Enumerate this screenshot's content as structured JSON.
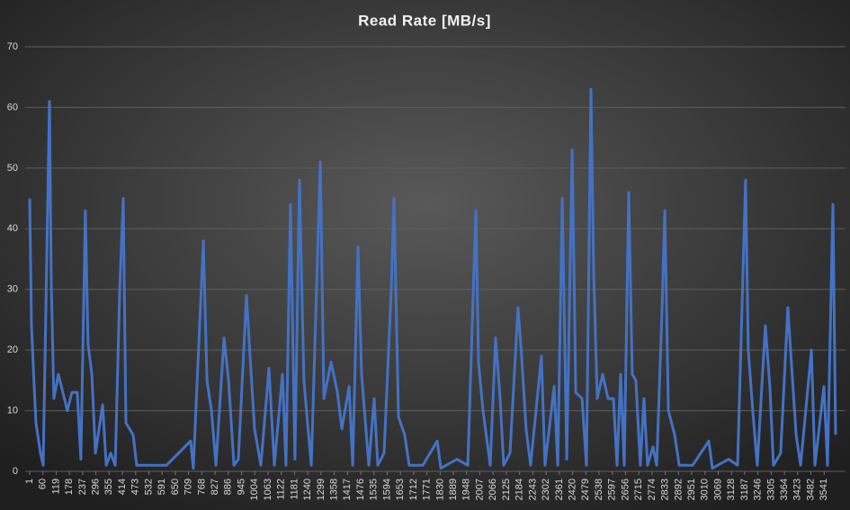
{
  "chart_data": {
    "type": "line",
    "title": "Read Rate [MB/s]",
    "color": "#4472c4",
    "grid": true,
    "x": [
      1,
      9,
      21,
      29,
      49,
      61,
      89,
      97,
      109,
      129,
      149,
      169,
      189,
      213,
      229,
      249,
      261,
      278,
      294,
      326,
      342,
      362,
      382,
      402,
      418,
      430,
      462,
      478,
      510,
      610,
      718,
      730,
      775,
      791,
      811,
      831,
      867,
      887,
      911,
      931,
      967,
      983,
      1003,
      1031,
      1067,
      1091,
      1127,
      1143,
      1163,
      1183,
      1203,
      1223,
      1239,
      1256,
      1296,
      1312,
      1344,
      1372,
      1392,
      1424,
      1440,
      1464,
      1480,
      1512,
      1536,
      1552,
      1580,
      1612,
      1624,
      1644,
      1672,
      1692,
      1753,
      1817,
      1833,
      1905,
      1953,
      1989,
      2001,
      2021,
      2053,
      2077,
      2097,
      2113,
      2141,
      2177,
      2193,
      2213,
      2233,
      2281,
      2297,
      2338,
      2354,
      2374,
      2394,
      2418,
      2434,
      2462,
      2482,
      2502,
      2514,
      2530,
      2554,
      2578,
      2602,
      2618,
      2634,
      2650,
      2670,
      2686,
      2702,
      2722,
      2738,
      2754,
      2778,
      2795,
      2819,
      2831,
      2847,
      2875,
      2895,
      2955,
      3027,
      3043,
      3115,
      3155,
      3191,
      3203,
      3223,
      3243,
      3279,
      3299,
      3315,
      3347,
      3379,
      3395,
      3416,
      3436,
      3484,
      3500,
      3540,
      3556,
      3580,
      3592
    ],
    "values": [
      45,
      24,
      14,
      8,
      3,
      1,
      61,
      31,
      12,
      16,
      13,
      10,
      13,
      13,
      2,
      43,
      21,
      16,
      3,
      11,
      1,
      3,
      1,
      30,
      45,
      8,
      6,
      1,
      1,
      1,
      5,
      0.5,
      38,
      15,
      10,
      1,
      22,
      15,
      1,
      2,
      29,
      19,
      7,
      1,
      17,
      1,
      16,
      1,
      44,
      2,
      48,
      15,
      8,
      1,
      51,
      12,
      18,
      13,
      7,
      14,
      1,
      37,
      16,
      1,
      12,
      1,
      3,
      30,
      45,
      9,
      6,
      1,
      1,
      5,
      0.5,
      2,
      1,
      43,
      18,
      10,
      1,
      22,
      12,
      1,
      3,
      27,
      19,
      7,
      1,
      19,
      1,
      14,
      1,
      45,
      2,
      53,
      13,
      12,
      1,
      63,
      33,
      12,
      16,
      12,
      12,
      1,
      16,
      1,
      46,
      16,
      15,
      1,
      12,
      1,
      4,
      1,
      27,
      43,
      10,
      6,
      1,
      1,
      5,
      0.5,
      2,
      1,
      48,
      20,
      10,
      1,
      24,
      14,
      1,
      3,
      27,
      18,
      6,
      1,
      20,
      1,
      14,
      1,
      44,
      6
    ],
    "xlim": [
      1,
      3600
    ],
    "xticks": [
      1,
      60,
      119,
      178,
      237,
      296,
      355,
      414,
      473,
      532,
      591,
      650,
      709,
      768,
      827,
      886,
      945,
      1004,
      1063,
      1122,
      1181,
      1240,
      1299,
      1358,
      1417,
      1476,
      1535,
      1594,
      1653,
      1712,
      1771,
      1830,
      1889,
      1948,
      2007,
      2066,
      2125,
      2184,
      2243,
      2302,
      2361,
      2420,
      2479,
      2538,
      2597,
      2656,
      2715,
      2774,
      2833,
      2892,
      2951,
      3010,
      3069,
      3128,
      3187,
      3246,
      3305,
      3364,
      3423,
      3482,
      3541
    ],
    "ylim": [
      0,
      70
    ],
    "yticks": [
      0,
      10,
      20,
      30,
      40,
      50,
      60,
      70
    ]
  }
}
